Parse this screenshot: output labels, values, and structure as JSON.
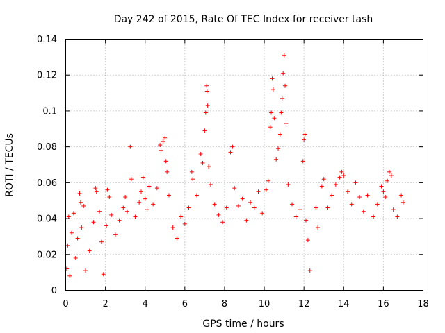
{
  "chart_data": {
    "type": "scatter",
    "title": "Day 242 of 2015, Rate Of TEC Index for receiver tash",
    "xlabel": "GPS time / hours",
    "ylabel": "ROTI / TECUs",
    "xlim": [
      0,
      18
    ],
    "ylim": [
      0,
      0.14
    ],
    "xticks": [
      0,
      2,
      4,
      6,
      8,
      10,
      12,
      14,
      16,
      18
    ],
    "xtick_labels": [
      "0",
      "2",
      "4",
      "6",
      "8",
      "10",
      "12",
      "14",
      "16",
      "18"
    ],
    "yticks": [
      0,
      0.02,
      0.04,
      0.06,
      0.08,
      0.1,
      0.12,
      0.14
    ],
    "ytick_labels": [
      "0",
      "0.02",
      "0.04",
      "0.06",
      "0.08",
      "0.1",
      "0.12",
      "0.14"
    ],
    "grid": true,
    "marker": "+",
    "color": "#ff0000",
    "series": [
      {
        "name": "ROTI",
        "points": [
          [
            0.05,
            0.012
          ],
          [
            0.1,
            0.025
          ],
          [
            0.15,
            0.041
          ],
          [
            0.2,
            0.008
          ],
          [
            0.3,
            0.032
          ],
          [
            0.4,
            0.043
          ],
          [
            0.5,
            0.018
          ],
          [
            0.6,
            0.029
          ],
          [
            0.7,
            0.054
          ],
          [
            0.75,
            0.049
          ],
          [
            0.8,
            0.035
          ],
          [
            0.9,
            0.047
          ],
          [
            1.0,
            0.011
          ],
          [
            1.2,
            0.022
          ],
          [
            1.4,
            0.038
          ],
          [
            1.5,
            0.057
          ],
          [
            1.55,
            0.055
          ],
          [
            1.7,
            0.044
          ],
          [
            1.8,
            0.027
          ],
          [
            1.9,
            0.009
          ],
          [
            2.05,
            0.036
          ],
          [
            2.1,
            0.056
          ],
          [
            2.2,
            0.052
          ],
          [
            2.3,
            0.042
          ],
          [
            2.5,
            0.031
          ],
          [
            2.7,
            0.039
          ],
          [
            2.9,
            0.046
          ],
          [
            3.0,
            0.052
          ],
          [
            3.1,
            0.044
          ],
          [
            3.25,
            0.08
          ],
          [
            3.3,
            0.062
          ],
          [
            3.5,
            0.041
          ],
          [
            3.7,
            0.049
          ],
          [
            3.8,
            0.055
          ],
          [
            3.9,
            0.063
          ],
          [
            4.0,
            0.051
          ],
          [
            4.1,
            0.045
          ],
          [
            4.2,
            0.058
          ],
          [
            4.4,
            0.048
          ],
          [
            4.6,
            0.057
          ],
          [
            4.75,
            0.081
          ],
          [
            4.8,
            0.078
          ],
          [
            4.9,
            0.083
          ],
          [
            5.0,
            0.085
          ],
          [
            5.05,
            0.072
          ],
          [
            5.1,
            0.066
          ],
          [
            5.2,
            0.053
          ],
          [
            5.4,
            0.035
          ],
          [
            5.6,
            0.029
          ],
          [
            5.8,
            0.041
          ],
          [
            6.0,
            0.037
          ],
          [
            6.2,
            0.046
          ],
          [
            6.35,
            0.066
          ],
          [
            6.4,
            0.062
          ],
          [
            6.6,
            0.053
          ],
          [
            6.8,
            0.076
          ],
          [
            6.9,
            0.071
          ],
          [
            7.0,
            0.089
          ],
          [
            7.05,
            0.099
          ],
          [
            7.1,
            0.114
          ],
          [
            7.12,
            0.111
          ],
          [
            7.15,
            0.103
          ],
          [
            7.2,
            0.069
          ],
          [
            7.3,
            0.059
          ],
          [
            7.5,
            0.048
          ],
          [
            7.7,
            0.042
          ],
          [
            7.9,
            0.038
          ],
          [
            8.1,
            0.046
          ],
          [
            8.3,
            0.077
          ],
          [
            8.4,
            0.08
          ],
          [
            8.5,
            0.057
          ],
          [
            8.7,
            0.047
          ],
          [
            8.9,
            0.051
          ],
          [
            9.1,
            0.039
          ],
          [
            9.3,
            0.049
          ],
          [
            9.5,
            0.046
          ],
          [
            9.7,
            0.055
          ],
          [
            9.9,
            0.043
          ],
          [
            10.1,
            0.056
          ],
          [
            10.2,
            0.061
          ],
          [
            10.3,
            0.091
          ],
          [
            10.35,
            0.099
          ],
          [
            10.4,
            0.118
          ],
          [
            10.45,
            0.112
          ],
          [
            10.5,
            0.096
          ],
          [
            10.6,
            0.073
          ],
          [
            10.7,
            0.079
          ],
          [
            10.8,
            0.087
          ],
          [
            10.85,
            0.099
          ],
          [
            10.9,
            0.107
          ],
          [
            10.95,
            0.121
          ],
          [
            11.0,
            0.131
          ],
          [
            11.05,
            0.114
          ],
          [
            11.1,
            0.093
          ],
          [
            11.2,
            0.059
          ],
          [
            11.4,
            0.048
          ],
          [
            11.6,
            0.041
          ],
          [
            11.8,
            0.045
          ],
          [
            11.95,
            0.072
          ],
          [
            12.0,
            0.084
          ],
          [
            12.05,
            0.087
          ],
          [
            12.1,
            0.039
          ],
          [
            12.2,
            0.028
          ],
          [
            12.3,
            0.011
          ],
          [
            12.6,
            0.046
          ],
          [
            12.7,
            0.035
          ],
          [
            12.9,
            0.058
          ],
          [
            13.0,
            0.062
          ],
          [
            13.2,
            0.046
          ],
          [
            13.4,
            0.053
          ],
          [
            13.6,
            0.059
          ],
          [
            13.8,
            0.063
          ],
          [
            13.9,
            0.066
          ],
          [
            14.0,
            0.064
          ],
          [
            14.2,
            0.055
          ],
          [
            14.4,
            0.048
          ],
          [
            14.6,
            0.06
          ],
          [
            14.8,
            0.052
          ],
          [
            15.0,
            0.044
          ],
          [
            15.2,
            0.053
          ],
          [
            15.5,
            0.041
          ],
          [
            15.7,
            0.048
          ],
          [
            15.9,
            0.058
          ],
          [
            16.0,
            0.055
          ],
          [
            16.1,
            0.052
          ],
          [
            16.2,
            0.061
          ],
          [
            16.3,
            0.066
          ],
          [
            16.4,
            0.064
          ],
          [
            16.5,
            0.045
          ],
          [
            16.7,
            0.041
          ],
          [
            16.9,
            0.053
          ],
          [
            17.0,
            0.049
          ]
        ]
      }
    ]
  }
}
